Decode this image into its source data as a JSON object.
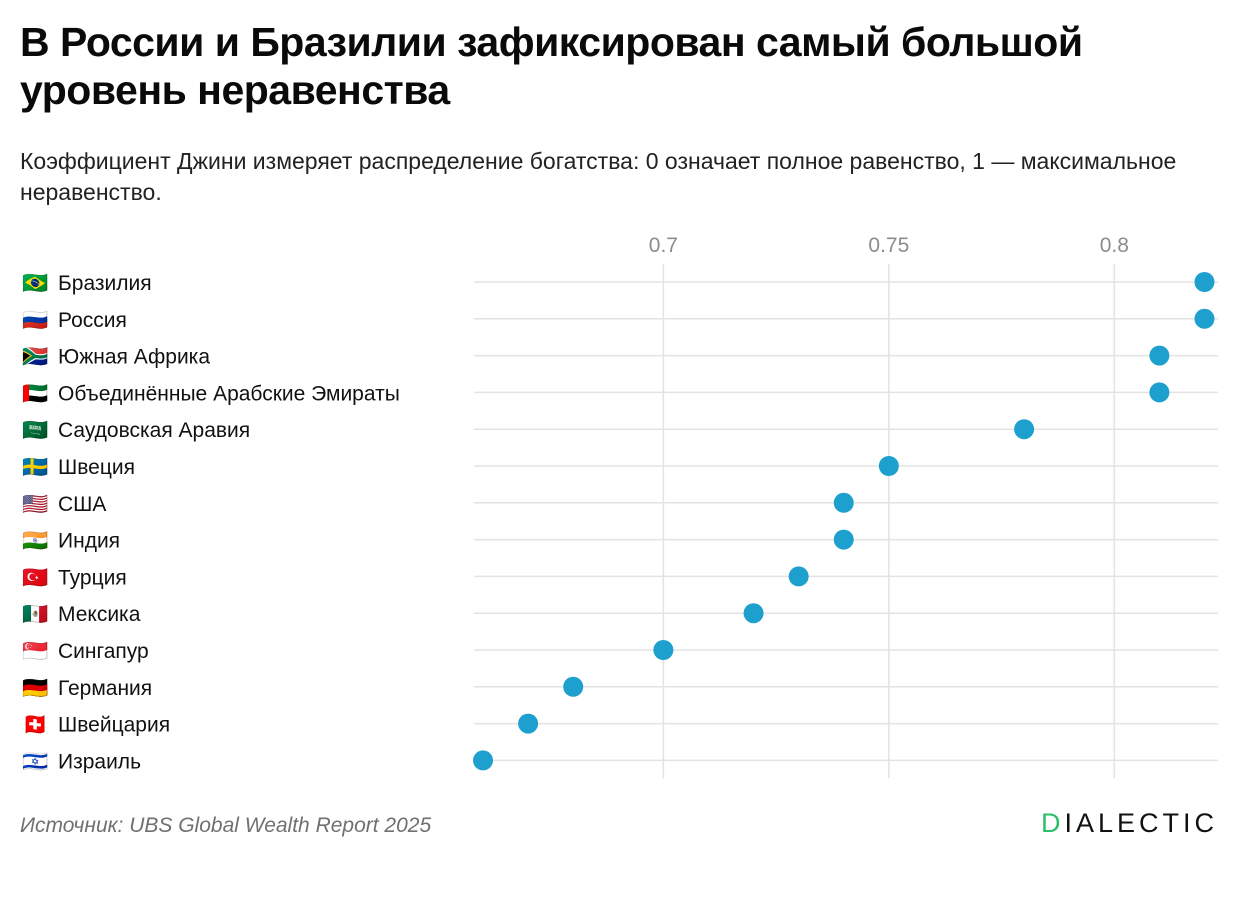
{
  "title": "В России и Бразилии зафиксирован самый большой уровень неравенства",
  "subtitle": "Коэффициент Джини измеряет распределение богатства: 0 означает полное равенство, 1 — максимальное неравенство.",
  "source": "Источник: UBS Global Wealth Report 2025",
  "brand": {
    "first": "D",
    "rest": "IALECTIC",
    "accent_color": "#2bbf6a"
  },
  "colors": {
    "dot": "#1ea0cf",
    "grid": "#e3e3e3",
    "tick": "#8c8c8c"
  },
  "chart_data": {
    "type": "scatter",
    "xlim": [
      0.658,
      0.823
    ],
    "xticks": [
      0.7,
      0.75,
      0.8
    ],
    "xtick_labels": [
      "0.7",
      "0.75",
      "0.8"
    ],
    "grid": true,
    "categories": [
      {
        "label": "Бразилия",
        "flag": "🇧🇷",
        "value": 0.82
      },
      {
        "label": "Россия",
        "flag": "🇷🇺",
        "value": 0.82
      },
      {
        "label": "Южная Африка",
        "flag": "🇿🇦",
        "value": 0.81
      },
      {
        "label": "Объединённые Арабские Эмираты",
        "flag": "🇦🇪",
        "value": 0.81
      },
      {
        "label": "Саудовская Аравия",
        "flag": "🇸🇦",
        "value": 0.78
      },
      {
        "label": "Швеция",
        "flag": "🇸🇪",
        "value": 0.75
      },
      {
        "label": "США",
        "flag": "🇺🇸",
        "value": 0.74
      },
      {
        "label": "Индия",
        "flag": "🇮🇳",
        "value": 0.74
      },
      {
        "label": "Турция",
        "flag": "🇹🇷",
        "value": 0.73
      },
      {
        "label": "Мексика",
        "flag": "🇲🇽",
        "value": 0.72
      },
      {
        "label": "Сингапур",
        "flag": "🇸🇬",
        "value": 0.7
      },
      {
        "label": "Германия",
        "flag": "🇩🇪",
        "value": 0.68
      },
      {
        "label": "Швейцария",
        "flag": "🇨🇭",
        "value": 0.67
      },
      {
        "label": "Израиль",
        "flag": "🇮🇱",
        "value": 0.66
      }
    ]
  }
}
